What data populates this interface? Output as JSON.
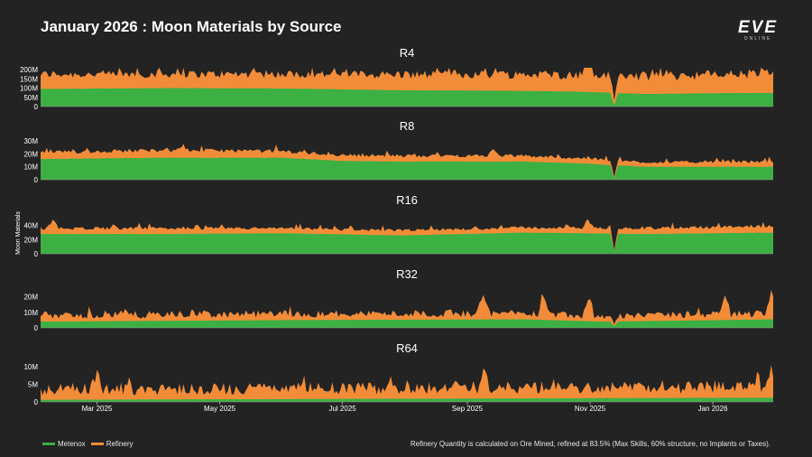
{
  "header": {
    "title": "January 2026 : Moon Materials by Source",
    "logo_main": "EVE",
    "logo_sub": "ONLINE"
  },
  "footer": {
    "note": "Refinery Quantity is calculated on Ore Mined, refined at 83.5% (Max Skills, 60% structure, no Implants or Taxes)."
  },
  "colors": {
    "metenox": "#3cb043",
    "refinery": "#f28c38",
    "background": "#232323",
    "text": "#ffffff"
  },
  "chart_data": {
    "type": "area",
    "stacked": true,
    "ylabel": "Moon Materials",
    "x_start": "2025-02-01",
    "x_end": "2026-01-31",
    "x_ticks": [
      "Mar 2025",
      "May 2025",
      "Jul 2025",
      "Sep 2025",
      "Nov 2025",
      "Jan 2026"
    ],
    "x_tick_dates": [
      "2025-03-01",
      "2025-05-01",
      "2025-07-01",
      "2025-09-01",
      "2025-11-01",
      "2026-01-01"
    ],
    "legend": [
      "Metenox",
      "Refinery"
    ],
    "legend_position": "bottom-left",
    "panels": [
      {
        "title": "R4",
        "ylim": [
          0,
          210
        ],
        "y_ticks": [
          0,
          50,
          100,
          150,
          200
        ],
        "y_tick_labels": [
          "0",
          "50M",
          "100M",
          "150M",
          "200M"
        ],
        "series": [
          {
            "name": "Metenox",
            "knots_days": [
              0,
              60,
              120,
              180,
              240,
              270,
              300,
              330,
              364
            ],
            "knots_values": [
              95,
              100,
              98,
              88,
              85,
              80,
              68,
              72,
              74
            ]
          },
          {
            "name": "Refinery",
            "knots_days": [
              0,
              60,
              120,
              180,
              240,
              270,
              300,
              330,
              364
            ],
            "knots_values": [
              80,
              75,
              78,
              85,
              90,
              92,
              95,
              100,
              105
            ]
          }
        ],
        "spikes": [
          {
            "day": 272,
            "series": "Refinery",
            "value": 60
          }
        ],
        "dips": [
          {
            "day": 285,
            "value": 5
          }
        ]
      },
      {
        "title": "R8",
        "ylim": [
          0,
          30
        ],
        "y_ticks": [
          0,
          10,
          20,
          30
        ],
        "y_tick_labels": [
          "0",
          "10M",
          "20M",
          "30M"
        ],
        "series": [
          {
            "name": "Metenox",
            "knots_days": [
              0,
              60,
              120,
              150,
              180,
              240,
              270,
              300,
              364
            ],
            "knots_values": [
              16,
              17,
              17,
              14.5,
              14,
              14,
              12.5,
              10,
              10
            ]
          },
          {
            "name": "Refinery",
            "knots_days": [
              0,
              60,
              120,
              150,
              180,
              240,
              270,
              300,
              364
            ],
            "knots_values": [
              5,
              6,
              5,
              4.5,
              4.5,
              4.5,
              4,
              3.5,
              4
            ]
          }
        ],
        "spikes": [
          {
            "day": 225,
            "series": "Refinery",
            "value": 6
          }
        ],
        "dips": [
          {
            "day": 285,
            "value": 1
          }
        ]
      },
      {
        "title": "R16",
        "ylim": [
          0,
          55
        ],
        "y_ticks": [
          0,
          20,
          40
        ],
        "y_tick_labels": [
          "0",
          "20M",
          "40M"
        ],
        "series": [
          {
            "name": "Metenox",
            "knots_days": [
              0,
              60,
              120,
              180,
              240,
              300,
              364
            ],
            "knots_values": [
              28,
              28,
              29,
              26,
              30,
              28,
              30
            ]
          },
          {
            "name": "Refinery",
            "knots_days": [
              0,
              60,
              120,
              180,
              240,
              300,
              364
            ],
            "knots_values": [
              8,
              8,
              7,
              7,
              7,
              8,
              9
            ]
          }
        ],
        "spikes": [
          {
            "day": 6,
            "series": "Refinery",
            "value": 12
          },
          {
            "day": 272,
            "series": "Refinery",
            "value": 12
          }
        ],
        "dips": [
          {
            "day": 285,
            "value": 3
          }
        ]
      },
      {
        "title": "R32",
        "ylim": [
          0,
          25
        ],
        "y_ticks": [
          0,
          10,
          20
        ],
        "y_tick_labels": [
          "0",
          "10M",
          "20M"
        ],
        "series": [
          {
            "name": "Metenox",
            "knots_days": [
              0,
              120,
              240,
              280,
              364
            ],
            "knots_values": [
              4,
              5,
              5.5,
              4,
              5.5
            ]
          },
          {
            "name": "Refinery",
            "knots_days": [
              0,
              120,
              240,
              280,
              364
            ],
            "knots_values": [
              4,
              4,
              4,
              3.5,
              4
            ]
          }
        ],
        "spikes": [
          {
            "day": 220,
            "series": "Refinery",
            "value": 14
          },
          {
            "day": 250,
            "series": "Refinery",
            "value": 12
          },
          {
            "day": 272,
            "series": "Refinery",
            "value": 12
          },
          {
            "day": 340,
            "series": "Refinery",
            "value": 13
          },
          {
            "day": 363,
            "series": "Refinery",
            "value": 14
          }
        ],
        "dips": [
          {
            "day": 285,
            "value": 1
          }
        ]
      },
      {
        "title": "R64",
        "ylim": [
          0,
          11
        ],
        "y_ticks": [
          0,
          5,
          10
        ],
        "y_tick_labels": [
          "0",
          "5M",
          "10M"
        ],
        "series": [
          {
            "name": "Metenox",
            "knots_days": [
              0,
              120,
              240,
              364
            ],
            "knots_values": [
              0.6,
              0.8,
              1,
              1.2
            ]
          },
          {
            "name": "Refinery",
            "knots_days": [
              0,
              120,
              240,
              364
            ],
            "knots_values": [
              3,
              3,
              3,
              3
            ]
          }
        ],
        "spikes": [
          {
            "day": 28,
            "series": "Refinery",
            "value": 5
          },
          {
            "day": 220,
            "series": "Refinery",
            "value": 5
          },
          {
            "day": 363,
            "series": "Refinery",
            "value": 6.5
          }
        ],
        "dips": []
      }
    ]
  }
}
